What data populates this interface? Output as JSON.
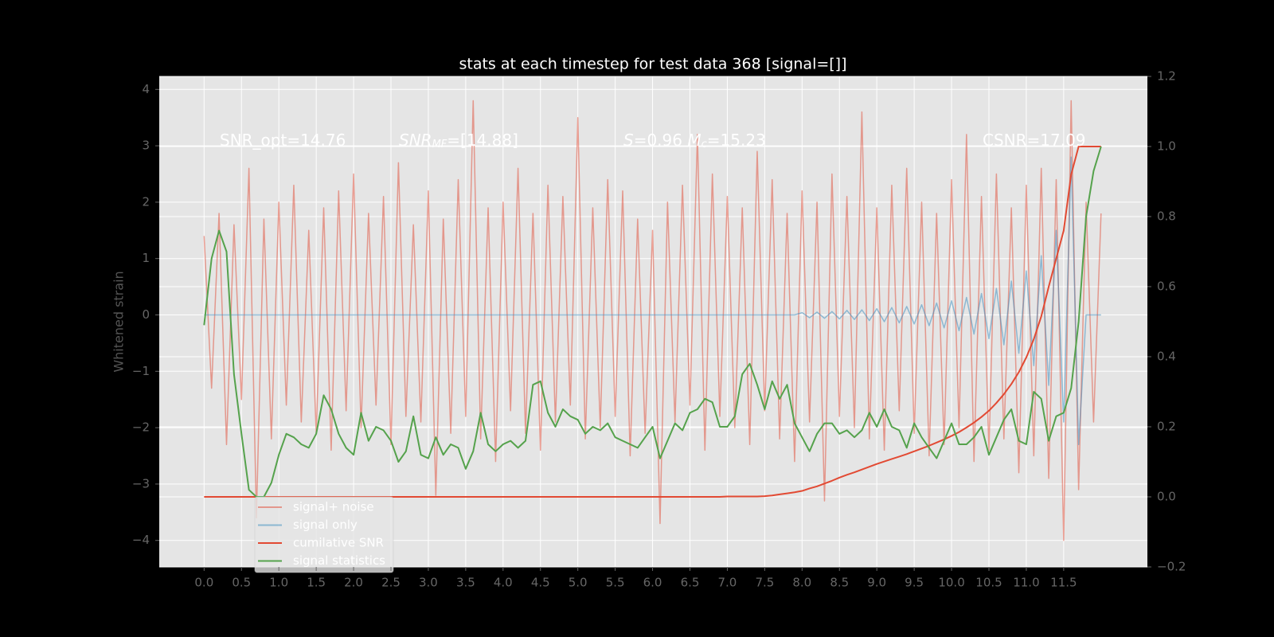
{
  "chart_data": {
    "type": "line",
    "title": "stats at each timestep for test data 368 [signal=[]]",
    "y_label": "Whitened strain",
    "annotations": [
      [
        "SNR_opt=14.76"
      ],
      [
        "SNR",
        "MF",
        "=[14.88]"
      ],
      [
        "S",
        "=0.96  ",
        "M",
        "c",
        "=15.23"
      ],
      [
        "CSNR=17.09"
      ]
    ],
    "grid": true,
    "legend": "lower left",
    "xlim": [
      -0.6,
      12.62
    ],
    "ylim": [
      -4.47,
      4.23
    ],
    "y2lim": [
      -0.2,
      1.2
    ],
    "xticks": [
      {
        "value": 0,
        "label": "0.0"
      },
      0.5,
      {
        "value": 1,
        "label": "1.0"
      },
      1.5,
      {
        "value": 2,
        "label": "2.0"
      },
      2.5,
      {
        "value": 3,
        "label": "3.0"
      },
      3.5,
      {
        "value": 4,
        "label": "4.0"
      },
      4.5,
      {
        "value": 5,
        "label": "5.0"
      },
      5.5,
      {
        "value": 6,
        "label": "6.0"
      },
      6.5,
      {
        "value": 7,
        "label": "7.0"
      },
      7.5,
      {
        "value": 8,
        "label": "8.0"
      },
      8.5,
      {
        "value": 9,
        "label": "9.0"
      },
      9.5,
      {
        "value": 10,
        "label": "10.0"
      },
      10.5,
      {
        "value": 11,
        "label": "11.0"
      },
      11.5
    ],
    "yticks": [
      4,
      3,
      2,
      1,
      0,
      {
        "value": -1,
        "label": "−1"
      },
      {
        "value": -2,
        "label": "−2"
      },
      {
        "value": -3,
        "label": "−3"
      },
      {
        "value": -4,
        "label": "−4"
      }
    ],
    "y2ticks": [
      1.2,
      {
        "value": 1,
        "label": "1.0"
      },
      0.8,
      0.6,
      0.4,
      0.2,
      {
        "value": 0,
        "label": "0.0"
      },
      {
        "value": -0.2,
        "label": "−0.2"
      }
    ],
    "x": [
      0,
      0.1,
      0.2,
      0.3,
      0.4,
      0.5,
      0.6,
      0.7,
      0.8,
      0.9,
      1,
      1.1,
      1.2,
      1.3,
      1.4,
      1.5,
      1.6,
      1.7,
      1.8,
      1.9,
      2,
      2.1,
      2.2,
      2.3,
      2.4,
      2.5,
      2.6,
      2.7,
      2.8,
      2.9,
      3,
      3.1,
      3.2,
      3.3,
      3.4,
      3.5,
      3.6,
      3.7,
      3.8,
      3.9,
      4,
      4.1,
      4.2,
      4.3,
      4.4,
      4.5,
      4.6,
      4.7,
      4.8,
      4.9,
      5,
      5.1,
      5.2,
      5.3,
      5.4,
      5.5,
      5.6,
      5.7,
      5.8,
      5.9,
      6,
      6.1,
      6.2,
      6.3,
      6.4,
      6.5,
      6.6,
      6.7,
      6.8,
      6.9,
      7,
      7.1,
      7.2,
      7.3,
      7.4,
      7.5,
      7.6,
      7.7,
      7.8,
      7.9,
      8,
      8.1,
      8.2,
      8.3,
      8.4,
      8.5,
      8.6,
      8.7,
      8.8,
      8.9,
      9,
      9.1,
      9.2,
      9.3,
      9.4,
      9.5,
      9.6,
      9.7,
      9.8,
      9.9,
      10,
      10.1,
      10.2,
      10.3,
      10.4,
      10.5,
      10.6,
      10.7,
      10.8,
      10.9,
      11,
      11.1,
      11.2,
      11.3,
      11.4,
      11.5,
      11.6,
      11.7,
      11.8,
      11.9,
      12
    ],
    "series": [
      {
        "name": "signal+ noise",
        "color": "#e24a33",
        "alpha": 0.5,
        "axis": "y",
        "values": [
          1.4,
          -1.3,
          1.8,
          -2.3,
          1.6,
          -1.5,
          2.6,
          -3.6,
          1.7,
          -2.2,
          2.0,
          -1.6,
          2.3,
          -1.9,
          1.5,
          -2.1,
          1.9,
          -2.4,
          2.2,
          -1.7,
          2.5,
          -2.0,
          1.8,
          -1.6,
          2.1,
          -2.3,
          2.7,
          -1.8,
          1.6,
          -1.9,
          2.2,
          -3.2,
          1.7,
          -2.1,
          2.4,
          -1.8,
          3.8,
          -2.2,
          1.9,
          -2.6,
          2.0,
          -1.7,
          2.6,
          -2.1,
          1.8,
          -2.4,
          2.3,
          -1.9,
          2.1,
          -1.6,
          3.5,
          -2.2,
          1.9,
          -2.0,
          2.4,
          -1.8,
          2.2,
          -2.5,
          1.7,
          -2.1,
          1.5,
          -3.7,
          2.0,
          -1.9,
          2.3,
          -1.6,
          3.2,
          -2.4,
          2.5,
          -1.8,
          2.1,
          -2.0,
          1.9,
          -2.3,
          2.9,
          -1.7,
          2.4,
          -2.2,
          1.8,
          -2.6,
          2.2,
          -1.9,
          2.0,
          -3.3,
          2.5,
          -1.8,
          2.1,
          -2.0,
          3.6,
          -2.2,
          1.9,
          -2.4,
          2.3,
          -1.7,
          2.6,
          -2.1,
          2.0,
          -2.5,
          1.8,
          -2.3,
          2.4,
          -2.0,
          3.2,
          -2.6,
          2.1,
          -2.4,
          2.5,
          -2.2,
          1.9,
          -2.8,
          2.3,
          -2.5,
          2.6,
          -2.9,
          2.4,
          -4.0,
          3.8,
          -3.1,
          2.0,
          -1.9,
          1.8
        ]
      },
      {
        "name": "signal only",
        "color": "#348abd",
        "alpha": 0.5,
        "axis": "y",
        "values": [
          0,
          0,
          0,
          0,
          0,
          0,
          0,
          0,
          0,
          0,
          0,
          0,
          0,
          0,
          0,
          0,
          0,
          0,
          0,
          0,
          0,
          0,
          0,
          0,
          0,
          0,
          0,
          0,
          0,
          0,
          0,
          0,
          0,
          0,
          0,
          0,
          0,
          0,
          0,
          0,
          0,
          0,
          0,
          0,
          0,
          0,
          0,
          0,
          0,
          0,
          0,
          0,
          0,
          0,
          0,
          0,
          0,
          0,
          0,
          0,
          0,
          0,
          0,
          0,
          0,
          0,
          0,
          0,
          0,
          0,
          0,
          0,
          0,
          0,
          0,
          0,
          0,
          0,
          0,
          0,
          0.04,
          -0.05,
          0.05,
          -0.06,
          0.06,
          -0.07,
          0.08,
          -0.08,
          0.09,
          -0.1,
          0.11,
          -0.12,
          0.13,
          -0.14,
          0.15,
          -0.16,
          0.18,
          -0.19,
          0.21,
          -0.23,
          0.25,
          -0.28,
          0.31,
          -0.34,
          0.38,
          -0.42,
          0.47,
          -0.53,
          0.6,
          -0.68,
          0.78,
          -0.9,
          1.05,
          -1.25,
          1.5,
          -1.9,
          2.8,
          -2.3,
          0,
          0,
          0
        ]
      },
      {
        "name": "cumilative SNR",
        "color": "#e24a33",
        "alpha": 1,
        "axis": "y2",
        "values": [
          0,
          0,
          0,
          0,
          0,
          0,
          0,
          0,
          0,
          0,
          0,
          0,
          0,
          0,
          0,
          0,
          0,
          0,
          0,
          0,
          0,
          0,
          0,
          0,
          0,
          0,
          0,
          0,
          0,
          0,
          0,
          0,
          0,
          0,
          0,
          0,
          0,
          0,
          0,
          0,
          0,
          0,
          0,
          0,
          0,
          0,
          0,
          0,
          0,
          0,
          0,
          0,
          0,
          0,
          0,
          0,
          0,
          0,
          0,
          0,
          0,
          0,
          0,
          0,
          0,
          0,
          0,
          0,
          0,
          0,
          0.001,
          0.001,
          0.001,
          0.001,
          0.001,
          0.002,
          0.004,
          0.007,
          0.01,
          0.013,
          0.017,
          0.024,
          0.03,
          0.038,
          0.046,
          0.055,
          0.063,
          0.07,
          0.078,
          0.086,
          0.094,
          0.101,
          0.108,
          0.115,
          0.122,
          0.13,
          0.138,
          0.146,
          0.155,
          0.164,
          0.174,
          0.185,
          0.198,
          0.212,
          0.228,
          0.246,
          0.268,
          0.293,
          0.322,
          0.356,
          0.398,
          0.45,
          0.515,
          0.6,
          0.68,
          0.76,
          0.92,
          1.0,
          1.0,
          1.0,
          1.0
        ]
      },
      {
        "name": "signal statistics",
        "color": "#55a24c",
        "alpha": 1,
        "axis": "y2",
        "values": [
          0.49,
          0.68,
          0.76,
          0.7,
          0.35,
          0.18,
          0.02,
          0.0,
          0.0,
          0.04,
          0.12,
          0.18,
          0.17,
          0.15,
          0.14,
          0.18,
          0.29,
          0.25,
          0.18,
          0.14,
          0.12,
          0.24,
          0.16,
          0.2,
          0.19,
          0.16,
          0.1,
          0.13,
          0.23,
          0.12,
          0.11,
          0.17,
          0.12,
          0.15,
          0.14,
          0.08,
          0.13,
          0.24,
          0.15,
          0.13,
          0.15,
          0.16,
          0.14,
          0.16,
          0.32,
          0.33,
          0.24,
          0.2,
          0.25,
          0.23,
          0.22,
          0.18,
          0.2,
          0.19,
          0.21,
          0.17,
          0.16,
          0.15,
          0.14,
          0.17,
          0.2,
          0.11,
          0.16,
          0.21,
          0.19,
          0.24,
          0.25,
          0.28,
          0.27,
          0.2,
          0.2,
          0.23,
          0.35,
          0.38,
          0.32,
          0.25,
          0.33,
          0.28,
          0.32,
          0.21,
          0.17,
          0.13,
          0.18,
          0.21,
          0.21,
          0.18,
          0.19,
          0.17,
          0.19,
          0.24,
          0.2,
          0.25,
          0.2,
          0.19,
          0.14,
          0.21,
          0.17,
          0.14,
          0.11,
          0.16,
          0.21,
          0.15,
          0.15,
          0.17,
          0.2,
          0.12,
          0.17,
          0.22,
          0.25,
          0.16,
          0.15,
          0.3,
          0.28,
          0.16,
          0.23,
          0.24,
          0.31,
          0.5,
          0.8,
          0.93,
          1.0
        ]
      }
    ]
  }
}
